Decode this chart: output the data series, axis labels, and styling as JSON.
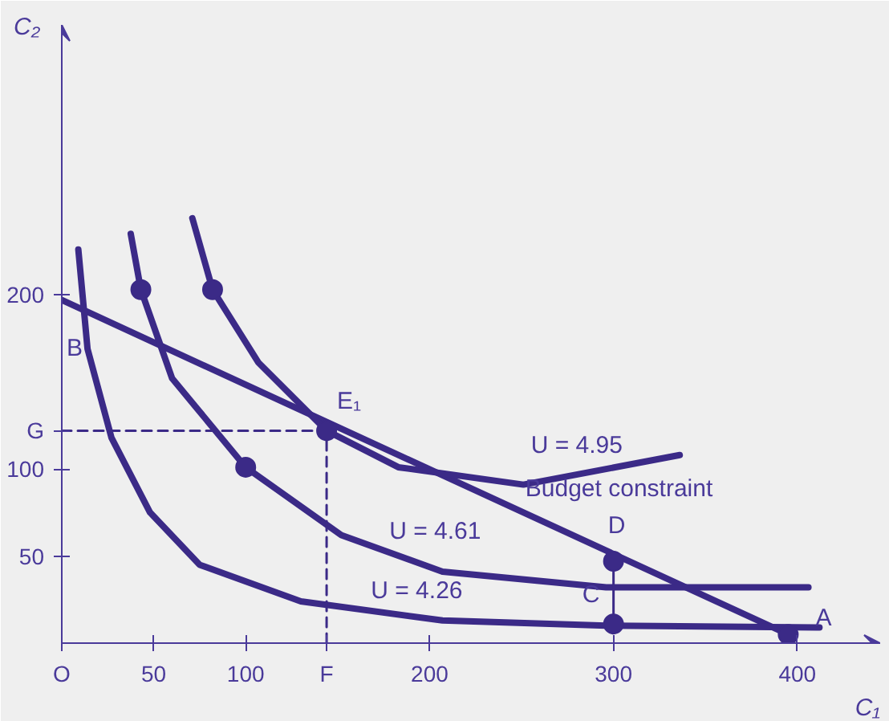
{
  "chart_data": {
    "type": "line",
    "xlabel": "C₁",
    "ylabel": "C₂",
    "xlim": [
      0,
      445
    ],
    "ylim": [
      0,
      355
    ],
    "xticks": [
      {
        "value": 0,
        "label": "O"
      },
      50,
      100,
      {
        "value": 144,
        "label": "F"
      },
      200,
      300,
      400
    ],
    "yticks": [
      50,
      100,
      {
        "value": 122,
        "label": "G"
      },
      200
    ],
    "grid": false,
    "marker": "none",
    "line_style": "solid",
    "series": [
      {
        "color": "#3b2a87",
        "x": [
          0,
          395
        ],
        "values": [
          197,
          5
        ]
      },
      {
        "color": "#3b2a87",
        "x": [
          9,
          14,
          27,
          48,
          75,
          130,
          207,
          296,
          412
        ],
        "values": [
          226,
          169,
          118,
          75,
          45,
          24,
          13,
          10,
          9
        ]
      },
      {
        "color": "#3b2a87",
        "x": [
          37.5,
          43,
          60,
          100,
          152,
          207,
          296,
          406
        ],
        "values": [
          235,
          203,
          152,
          101,
          62,
          41,
          32,
          32
        ]
      },
      {
        "color": "#3b2a87",
        "x": [
          71,
          82,
          107,
          144,
          183,
          251,
          336
        ],
        "values": [
          244,
          203,
          161,
          122,
          101,
          91,
          108
        ]
      },
      {
        "color": "#3b2a87",
        "x": [
          144,
          144
        ],
        "values": [
          0,
          122
        ],
        "line_style": "dashed"
      },
      {
        "color": "#3b2a87",
        "x": [
          0,
          144
        ],
        "values": [
          122,
          122
        ],
        "line_style": "dashed"
      },
      {
        "color": "#3b2a87",
        "x": [
          300,
          300
        ],
        "values": [
          11,
          47
        ]
      },
      {
        "type": "scatter",
        "marker": "circle",
        "color": "#3b2a87",
        "x": [
          43,
          82,
          100,
          144,
          300,
          300,
          395
        ],
        "values": [
          203,
          203,
          101,
          122,
          47,
          11,
          5
        ]
      }
    ],
    "annotations": [
      {
        "text": "B",
        "x": 0,
        "y": 197
      },
      {
        "text": "E₁",
        "x": 144,
        "y": 122
      },
      {
        "text": "D",
        "x": 300,
        "y": 47
      },
      {
        "text": "C",
        "x": 300,
        "y": 11
      },
      {
        "text": "A",
        "x": 395,
        "y": 5
      },
      {
        "text": "U = 4.95",
        "x": 280,
        "y": 93
      },
      {
        "text": "U = 4.61",
        "x": 203,
        "y": 42
      },
      {
        "text": "U = 4.26",
        "x": 193,
        "y": 15
      },
      {
        "text": "Budget constraint",
        "x": 303,
        "y": 50
      }
    ]
  }
}
